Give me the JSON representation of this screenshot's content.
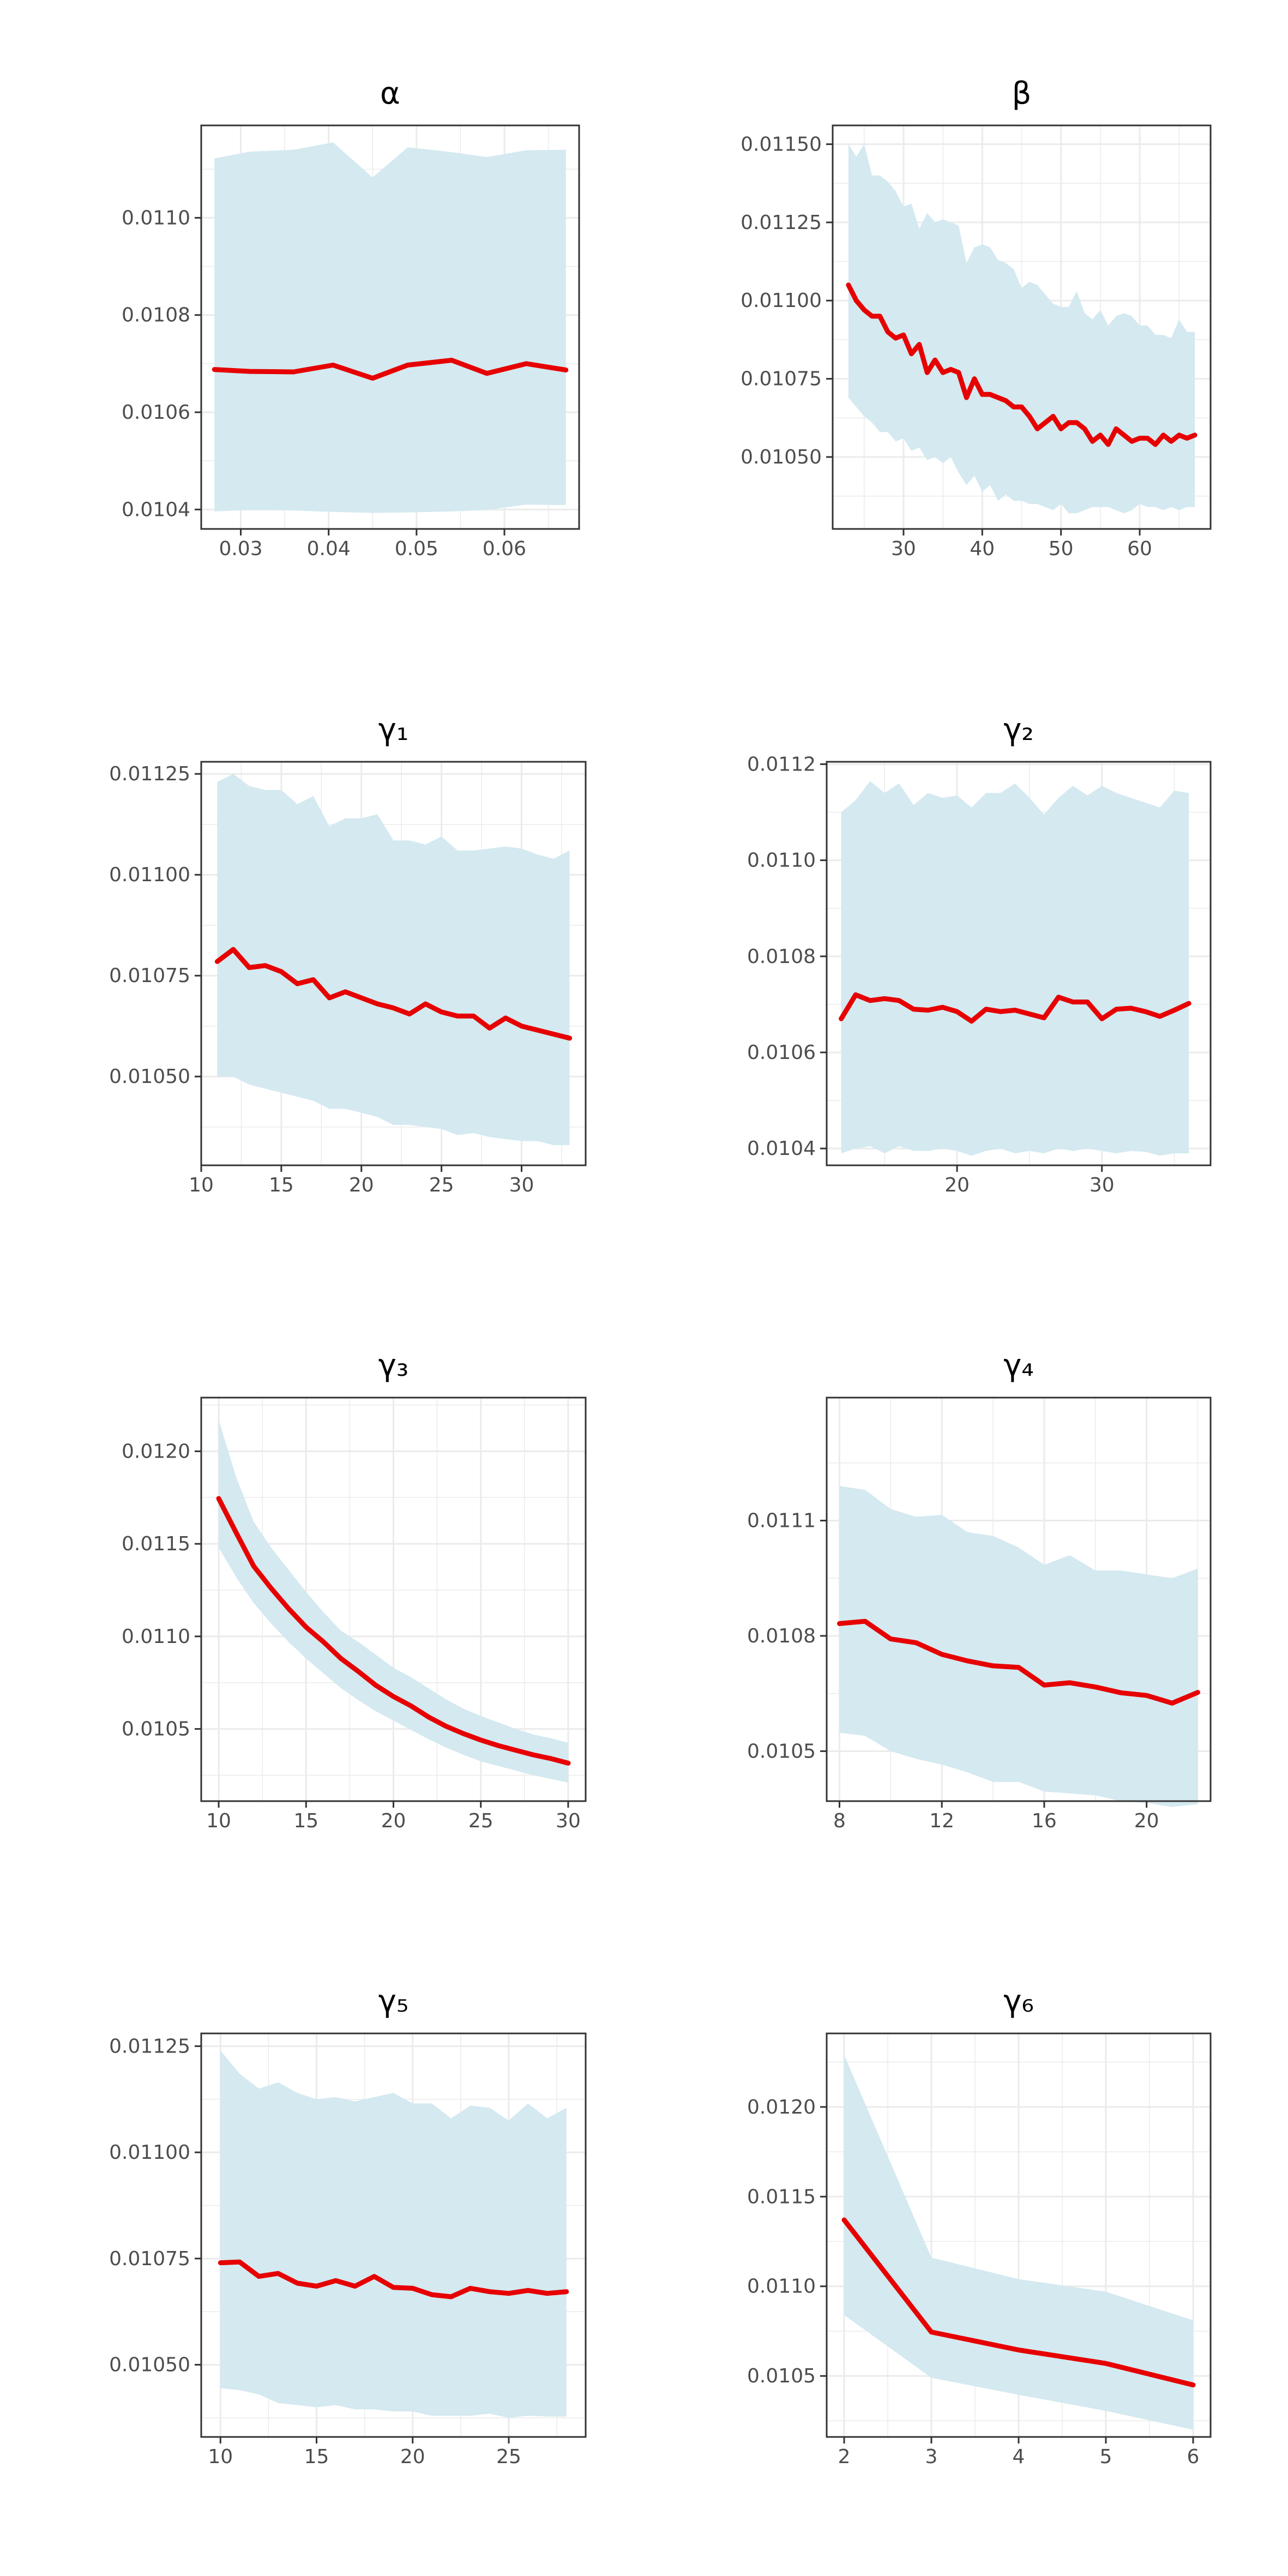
{
  "colors": {
    "line": "#e60000",
    "band": "#d4e9f0",
    "grid": "#ebebeb",
    "frame": "#333333",
    "tick_text": "#4d4d4d"
  },
  "chart_data": [
    {
      "type": "line",
      "title": "α",
      "xlim": [
        0.0255,
        0.0685
      ],
      "ylim": [
        0.01036,
        0.01119
      ],
      "xticks": [
        0.03,
        0.04,
        0.05,
        0.06
      ],
      "xtick_labels": [
        "0.03",
        "0.04",
        "0.05",
        "0.06"
      ],
      "yticks": [
        0.0104,
        0.0106,
        0.0108,
        0.011
      ],
      "ytick_labels": [
        "0.0104",
        "0.0106",
        "0.0108",
        "0.0110"
      ],
      "series": [
        {
          "x": [
            0.027,
            0.031,
            0.036,
            0.0405,
            0.045,
            0.049,
            0.054,
            0.058,
            0.0625,
            0.067
          ],
          "y": [
            0.010688,
            0.010684,
            0.010683,
            0.010697,
            0.01067,
            0.010697,
            0.010707,
            0.01068,
            0.0107,
            0.010687
          ],
          "lower": [
            0.010396,
            0.010399,
            0.010398,
            0.010395,
            0.010393,
            0.010394,
            0.010396,
            0.010399,
            0.01041,
            0.010409
          ],
          "upper": [
            0.011122,
            0.011136,
            0.01114,
            0.011155,
            0.011083,
            0.011145,
            0.011135,
            0.011125,
            0.011139,
            0.01114
          ]
        }
      ]
    },
    {
      "type": "line",
      "title": "β",
      "xlim": [
        21,
        69
      ],
      "ylim": [
        0.01027,
        0.01156
      ],
      "xticks": [
        30,
        40,
        50,
        60
      ],
      "xtick_labels": [
        "30",
        "40",
        "50",
        "60"
      ],
      "yticks": [
        0.0105,
        0.01075,
        0.011,
        0.01125,
        0.0115
      ],
      "ytick_labels": [
        "0.01050",
        "0.01075",
        "0.01100",
        "0.01125",
        "0.01150"
      ],
      "series": [
        {
          "x": [
            23,
            24,
            25,
            26,
            27,
            28,
            29,
            30,
            31,
            32,
            33,
            34,
            35,
            36,
            37,
            38,
            39,
            40,
            41,
            42,
            43,
            44,
            45,
            46,
            47,
            48,
            49,
            50,
            51,
            52,
            53,
            54,
            55,
            56,
            57,
            58,
            59,
            60,
            61,
            62,
            63,
            64,
            65,
            66,
            67
          ],
          "y": [
            0.01105,
            0.011,
            0.01097,
            0.01095,
            0.01095,
            0.0109,
            0.01088,
            0.01089,
            0.01083,
            0.01086,
            0.01077,
            0.01081,
            0.01077,
            0.01078,
            0.01077,
            0.01069,
            0.01075,
            0.0107,
            0.0107,
            0.01069,
            0.01068,
            0.01066,
            0.01066,
            0.01063,
            0.01059,
            0.01061,
            0.01063,
            0.01059,
            0.01061,
            0.01061,
            0.01059,
            0.01055,
            0.01057,
            0.01054,
            0.01059,
            0.01057,
            0.01055,
            0.01056,
            0.01056,
            0.01054,
            0.01057,
            0.01055,
            0.01057,
            0.01056,
            0.01057
          ],
          "lower": [
            0.01069,
            0.01066,
            0.01063,
            0.01061,
            0.01058,
            0.01058,
            0.01055,
            0.01056,
            0.01052,
            0.01053,
            0.01049,
            0.0105,
            0.01048,
            0.0105,
            0.01045,
            0.01041,
            0.01044,
            0.01039,
            0.01041,
            0.01036,
            0.01038,
            0.01036,
            0.01036,
            0.01035,
            0.01035,
            0.01034,
            0.01033,
            0.01035,
            0.01032,
            0.01032,
            0.01033,
            0.01034,
            0.01034,
            0.01034,
            0.01033,
            0.01032,
            0.01033,
            0.01035,
            0.01034,
            0.01034,
            0.01033,
            0.01034,
            0.01033,
            0.01034,
            0.01034
          ],
          "upper": [
            0.0115,
            0.01146,
            0.0115,
            0.0114,
            0.0114,
            0.01138,
            0.01135,
            0.0113,
            0.01131,
            0.01123,
            0.01128,
            0.01125,
            0.01126,
            0.01125,
            0.01124,
            0.01112,
            0.01117,
            0.01118,
            0.01117,
            0.01113,
            0.01112,
            0.0111,
            0.01104,
            0.01106,
            0.01105,
            0.01102,
            0.01099,
            0.01098,
            0.01098,
            0.01103,
            0.01096,
            0.01094,
            0.01097,
            0.01092,
            0.01095,
            0.01096,
            0.01095,
            0.01092,
            0.01092,
            0.01089,
            0.01089,
            0.01088,
            0.01094,
            0.0109,
            0.0109
          ]
        }
      ]
    },
    {
      "type": "line",
      "title": "γ₁",
      "xlim": [
        10,
        34
      ],
      "ylim": [
        0.01028,
        0.01128
      ],
      "xticks": [
        10,
        15,
        20,
        25,
        30
      ],
      "xtick_labels": [
        "10",
        "15",
        "20",
        "25",
        "30"
      ],
      "yticks": [
        0.0105,
        0.01075,
        0.011,
        0.01125
      ],
      "ytick_labels": [
        "0.01050",
        "0.01075",
        "0.01100",
        "0.01125"
      ],
      "series": [
        {
          "x": [
            11,
            12,
            13,
            14,
            15,
            16,
            17,
            18,
            19,
            20,
            21,
            22,
            23,
            24,
            25,
            26,
            27,
            28,
            29,
            30,
            31,
            32,
            33
          ],
          "y": [
            0.010785,
            0.010815,
            0.01077,
            0.010775,
            0.01076,
            0.01073,
            0.01074,
            0.010695,
            0.01071,
            0.010695,
            0.01068,
            0.01067,
            0.010655,
            0.01068,
            0.01066,
            0.01065,
            0.01065,
            0.01062,
            0.010645,
            0.010625,
            0.010615,
            0.010605,
            0.010595
          ],
          "lower": [
            0.0105,
            0.0105,
            0.01048,
            0.01047,
            0.01046,
            0.01045,
            0.01044,
            0.01042,
            0.01042,
            0.01041,
            0.0104,
            0.01038,
            0.01038,
            0.010375,
            0.01037,
            0.010355,
            0.01036,
            0.01035,
            0.010345,
            0.01034,
            0.01034,
            0.01033,
            0.01033
          ],
          "upper": [
            0.01123,
            0.01125,
            0.01122,
            0.01121,
            0.01121,
            0.011175,
            0.011195,
            0.01112,
            0.01114,
            0.01114,
            0.01115,
            0.011085,
            0.011085,
            0.011075,
            0.011095,
            0.01106,
            0.01106,
            0.011065,
            0.01107,
            0.011065,
            0.01105,
            0.01104,
            0.01106
          ]
        }
      ]
    },
    {
      "type": "line",
      "title": "γ₂",
      "xlim": [
        11,
        37.5
      ],
      "ylim": [
        0.010365,
        0.011205
      ],
      "xticks": [
        20,
        30
      ],
      "xtick_labels": [
        "20",
        "30"
      ],
      "yticks": [
        0.0104,
        0.0106,
        0.0108,
        0.011,
        0.0112
      ],
      "ytick_labels": [
        "0.0104",
        "0.0106",
        "0.0108",
        "0.0110",
        "0.0112"
      ],
      "series": [
        {
          "x": [
            12,
            13,
            14,
            15,
            16,
            17,
            18,
            19,
            20,
            21,
            22,
            23,
            24,
            25,
            26,
            27,
            28,
            29,
            30,
            31,
            32,
            33,
            34,
            35,
            36
          ],
          "y": [
            0.01067,
            0.01072,
            0.010708,
            0.010712,
            0.010708,
            0.01069,
            0.010688,
            0.010694,
            0.010685,
            0.010665,
            0.01069,
            0.010685,
            0.010688,
            0.01068,
            0.010672,
            0.010715,
            0.010705,
            0.010705,
            0.01067,
            0.01069,
            0.010692,
            0.010685,
            0.010675,
            0.010688,
            0.010702
          ],
          "lower": [
            0.01039,
            0.0104,
            0.010405,
            0.01039,
            0.010405,
            0.010395,
            0.010395,
            0.0104,
            0.010395,
            0.010385,
            0.010395,
            0.0104,
            0.01039,
            0.010395,
            0.01039,
            0.0104,
            0.010395,
            0.0104,
            0.010395,
            0.01039,
            0.010395,
            0.010393,
            0.010385,
            0.01039,
            0.01039
          ],
          "upper": [
            0.0111,
            0.011125,
            0.011165,
            0.01114,
            0.01116,
            0.011115,
            0.01114,
            0.01113,
            0.011135,
            0.01111,
            0.01114,
            0.01114,
            0.01116,
            0.01113,
            0.011095,
            0.01113,
            0.011155,
            0.011135,
            0.011155,
            0.01114,
            0.01113,
            0.01112,
            0.01111,
            0.011145,
            0.01114
          ]
        }
      ]
    },
    {
      "type": "line",
      "title": "γ₃",
      "xlim": [
        9,
        31
      ],
      "ylim": [
        0.01011,
        0.01229
      ],
      "xticks": [
        10,
        15,
        20,
        25,
        30
      ],
      "xtick_labels": [
        "10",
        "15",
        "20",
        "25",
        "30"
      ],
      "yticks": [
        0.0105,
        0.011,
        0.0115,
        0.012
      ],
      "ytick_labels": [
        "0.0105",
        "0.0110",
        "0.0115",
        "0.0120"
      ],
      "series": [
        {
          "x": [
            10,
            11,
            12,
            13,
            14,
            15,
            16,
            17,
            18,
            19,
            20,
            21,
            22,
            23,
            24,
            25,
            26,
            27,
            28,
            29,
            30
          ],
          "y": [
            0.011745,
            0.01156,
            0.01138,
            0.01126,
            0.01115,
            0.01105,
            0.01097,
            0.01088,
            0.01081,
            0.010735,
            0.010675,
            0.010625,
            0.010565,
            0.010515,
            0.010475,
            0.01044,
            0.01041,
            0.010385,
            0.01036,
            0.01034,
            0.010315
          ],
          "lower": [
            0.01148,
            0.01132,
            0.01118,
            0.01107,
            0.01097,
            0.01088,
            0.0108,
            0.01072,
            0.010655,
            0.010595,
            0.010545,
            0.010495,
            0.010445,
            0.0104,
            0.01036,
            0.010325,
            0.0103,
            0.010275,
            0.01025,
            0.01023,
            0.01021
          ],
          "upper": [
            0.01217,
            0.01186,
            0.01162,
            0.01148,
            0.01136,
            0.01124,
            0.01113,
            0.01103,
            0.01097,
            0.0109,
            0.01083,
            0.01078,
            0.01072,
            0.01066,
            0.01061,
            0.01057,
            0.010535,
            0.0105,
            0.01047,
            0.01045,
            0.010425
          ]
        }
      ]
    },
    {
      "type": "line",
      "title": "γ₄",
      "xlim": [
        7.5,
        22.5
      ],
      "ylim": [
        0.01037,
        0.01142
      ],
      "xticks": [
        8,
        12,
        16,
        20
      ],
      "xtick_labels": [
        "8",
        "12",
        "16",
        "20"
      ],
      "yticks": [
        0.0105,
        0.0108,
        0.0111
      ],
      "ytick_labels": [
        "0.0105",
        "0.0108",
        "0.0111"
      ],
      "series": [
        {
          "x": [
            8,
            9,
            10,
            11,
            12,
            13,
            14,
            15,
            16,
            17,
            18,
            19,
            20,
            21,
            22
          ],
          "y": [
            0.010832,
            0.010838,
            0.010792,
            0.010782,
            0.010752,
            0.010735,
            0.010722,
            0.010718,
            0.010672,
            0.010678,
            0.010667,
            0.010652,
            0.010645,
            0.010625,
            0.010653
          ],
          "lower": [
            0.010548,
            0.01054,
            0.0105,
            0.01048,
            0.010465,
            0.010445,
            0.01042,
            0.01042,
            0.010395,
            0.01039,
            0.010385,
            0.01037,
            0.010365,
            0.010355,
            0.010362
          ],
          "upper": [
            0.01119,
            0.01118,
            0.01113,
            0.01111,
            0.011115,
            0.01107,
            0.01106,
            0.01103,
            0.010985,
            0.01101,
            0.01097,
            0.01097,
            0.01096,
            0.01095,
            0.010975
          ]
        }
      ]
    },
    {
      "type": "line",
      "title": "γ₅",
      "xlim": [
        9,
        29
      ],
      "ylim": [
        0.01033,
        0.01128
      ],
      "xticks": [
        10,
        15,
        20,
        25
      ],
      "xtick_labels": [
        "10",
        "15",
        "20",
        "25"
      ],
      "yticks": [
        0.0105,
        0.01075,
        0.011,
        0.01125
      ],
      "ytick_labels": [
        "0.01050",
        "0.01075",
        "0.01100",
        "0.01125"
      ],
      "series": [
        {
          "x": [
            10,
            11,
            12,
            13,
            14,
            15,
            16,
            17,
            18,
            19,
            20,
            21,
            22,
            23,
            24,
            25,
            26,
            27,
            28
          ],
          "y": [
            0.01074,
            0.010742,
            0.010708,
            0.010715,
            0.010692,
            0.010685,
            0.010698,
            0.010685,
            0.010708,
            0.010682,
            0.01068,
            0.010665,
            0.01066,
            0.01068,
            0.010672,
            0.010668,
            0.010675,
            0.010668,
            0.010672
          ],
          "lower": [
            0.010445,
            0.01044,
            0.01043,
            0.01041,
            0.010405,
            0.0104,
            0.010405,
            0.010395,
            0.010395,
            0.01039,
            0.01039,
            0.01038,
            0.01038,
            0.01038,
            0.010385,
            0.010375,
            0.01038,
            0.010378,
            0.010378
          ],
          "upper": [
            0.01124,
            0.011185,
            0.01115,
            0.011165,
            0.01114,
            0.011125,
            0.01113,
            0.01112,
            0.01113,
            0.01114,
            0.011115,
            0.011115,
            0.01108,
            0.01111,
            0.011105,
            0.011075,
            0.011115,
            0.01108,
            0.011105
          ]
        }
      ]
    },
    {
      "type": "line",
      "title": "γ₆",
      "xlim": [
        1.8,
        6.2
      ],
      "ylim": [
        0.01016,
        0.01241
      ],
      "xticks": [
        2,
        3,
        4,
        5,
        6
      ],
      "xtick_labels": [
        "2",
        "3",
        "4",
        "5",
        "6"
      ],
      "yticks": [
        0.0105,
        0.011,
        0.0115,
        0.012
      ],
      "ytick_labels": [
        "0.0105",
        "0.0110",
        "0.0115",
        "0.0120"
      ],
      "series": [
        {
          "x": [
            2,
            3,
            4,
            5,
            6
          ],
          "y": [
            0.01137,
            0.010745,
            0.010645,
            0.01057,
            0.01045
          ],
          "lower": [
            0.01084,
            0.01049,
            0.010395,
            0.010305,
            0.0102
          ],
          "upper": [
            0.01229,
            0.01116,
            0.01104,
            0.01097,
            0.01081
          ]
        }
      ]
    }
  ]
}
